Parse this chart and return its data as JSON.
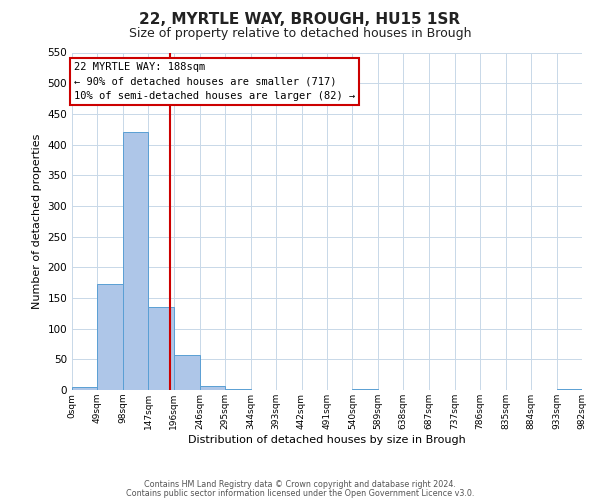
{
  "title": "22, MYRTLE WAY, BROUGH, HU15 1SR",
  "subtitle": "Size of property relative to detached houses in Brough",
  "xlabel": "Distribution of detached houses by size in Brough",
  "ylabel": "Number of detached properties",
  "bin_edges": [
    0,
    49,
    98,
    147,
    196,
    246,
    295,
    344,
    393,
    442,
    491,
    540,
    589,
    638,
    687,
    737,
    786,
    835,
    884,
    933,
    982
  ],
  "bin_labels": [
    "0sqm",
    "49sqm",
    "98sqm",
    "147sqm",
    "196sqm",
    "246sqm",
    "295sqm",
    "344sqm",
    "393sqm",
    "442sqm",
    "491sqm",
    "540sqm",
    "589sqm",
    "638sqm",
    "687sqm",
    "737sqm",
    "786sqm",
    "835sqm",
    "884sqm",
    "933sqm",
    "982sqm"
  ],
  "bar_heights": [
    5,
    173,
    421,
    135,
    57,
    7,
    2,
    0,
    0,
    0,
    0,
    2,
    0,
    0,
    0,
    0,
    0,
    0,
    0,
    2
  ],
  "bar_color": "#aec6e8",
  "bar_edge_color": "#5a9fd4",
  "ylim": [
    0,
    550
  ],
  "yticks": [
    0,
    50,
    100,
    150,
    200,
    250,
    300,
    350,
    400,
    450,
    500,
    550
  ],
  "property_value": 188,
  "vline_color": "#cc0000",
  "annotation_title": "22 MYRTLE WAY: 188sqm",
  "annotation_line1": "← 90% of detached houses are smaller (717)",
  "annotation_line2": "10% of semi-detached houses are larger (82) →",
  "annotation_box_color": "#ffffff",
  "annotation_box_edge": "#cc0000",
  "footer1": "Contains HM Land Registry data © Crown copyright and database right 2024.",
  "footer2": "Contains public sector information licensed under the Open Government Licence v3.0.",
  "bg_color": "#ffffff",
  "grid_color": "#c8d8e8",
  "title_fontsize": 11,
  "subtitle_fontsize": 9
}
